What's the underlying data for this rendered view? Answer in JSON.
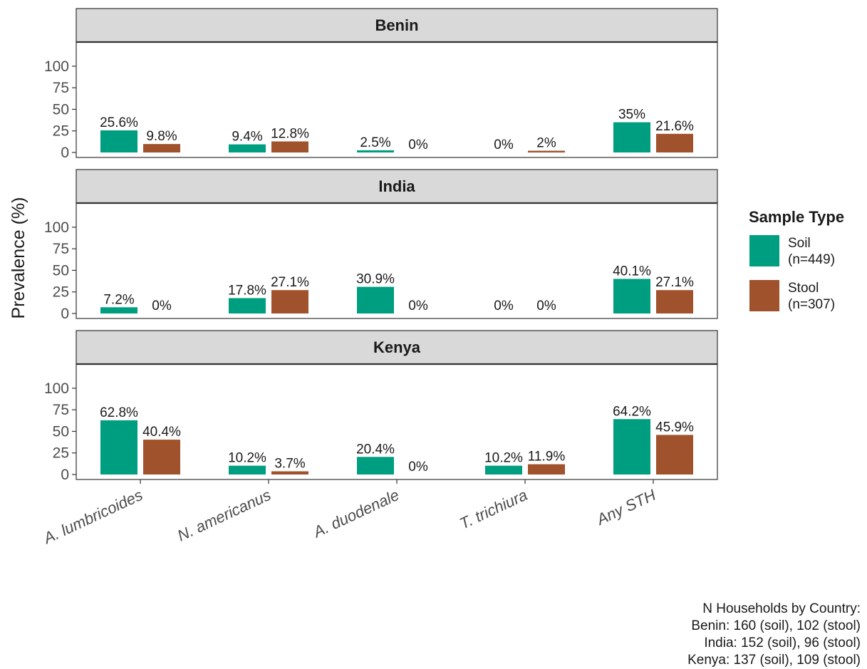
{
  "chart_data": {
    "type": "bar",
    "ylabel": "Prevalence (%)",
    "ylim": [
      0,
      100
    ],
    "yticks": [
      "0",
      "25",
      "50",
      "75",
      "100"
    ],
    "categories": [
      "A. lumbricoides",
      "N. americanus",
      "A. duodenale",
      "T. trichiura",
      "Any STH"
    ],
    "series_colors": [
      "#009E80",
      "#A0522D"
    ],
    "legend": {
      "title": "Sample Type",
      "position": "right",
      "items": [
        {
          "line1": "Soil",
          "line2": "(n=449)",
          "color": "#009E80"
        },
        {
          "line1": "Stool",
          "line2": "(n=307)",
          "color": "#A0522D"
        }
      ]
    },
    "panels": [
      {
        "title": "Benin",
        "series": [
          {
            "name": "Soil",
            "values": [
              25.6,
              9.4,
              2.5,
              0,
              35
            ],
            "labels": [
              "25.6%",
              "9.4%",
              "2.5%",
              "0%",
              "35%"
            ]
          },
          {
            "name": "Stool",
            "values": [
              9.8,
              12.8,
              0,
              2,
              21.6
            ],
            "labels": [
              "9.8%",
              "12.8%",
              "0%",
              "2%",
              "21.6%"
            ]
          }
        ]
      },
      {
        "title": "India",
        "series": [
          {
            "name": "Soil",
            "values": [
              7.2,
              17.8,
              30.9,
              0,
              40.1
            ],
            "labels": [
              "7.2%",
              "17.8%",
              "30.9%",
              "0%",
              "40.1%"
            ]
          },
          {
            "name": "Stool",
            "values": [
              0,
              27.1,
              0,
              0,
              27.1
            ],
            "labels": [
              "0%",
              "27.1%",
              "0%",
              "0%",
              "27.1%"
            ]
          }
        ]
      },
      {
        "title": "Kenya",
        "series": [
          {
            "name": "Soil",
            "values": [
              62.8,
              10.2,
              20.4,
              10.2,
              64.2
            ],
            "labels": [
              "62.8%",
              "10.2%",
              "20.4%",
              "10.2%",
              "64.2%"
            ]
          },
          {
            "name": "Stool",
            "values": [
              40.4,
              3.7,
              0,
              11.9,
              45.9
            ],
            "labels": [
              "40.4%",
              "3.7%",
              "0%",
              "11.9%",
              "45.9%"
            ]
          }
        ]
      }
    ],
    "caption": [
      "N Households by Country:",
      "Benin: 160 (soil), 102 (stool)",
      "India: 152 (soil), 96 (stool)",
      "Kenya: 137 (soil), 109 (stool)"
    ]
  }
}
